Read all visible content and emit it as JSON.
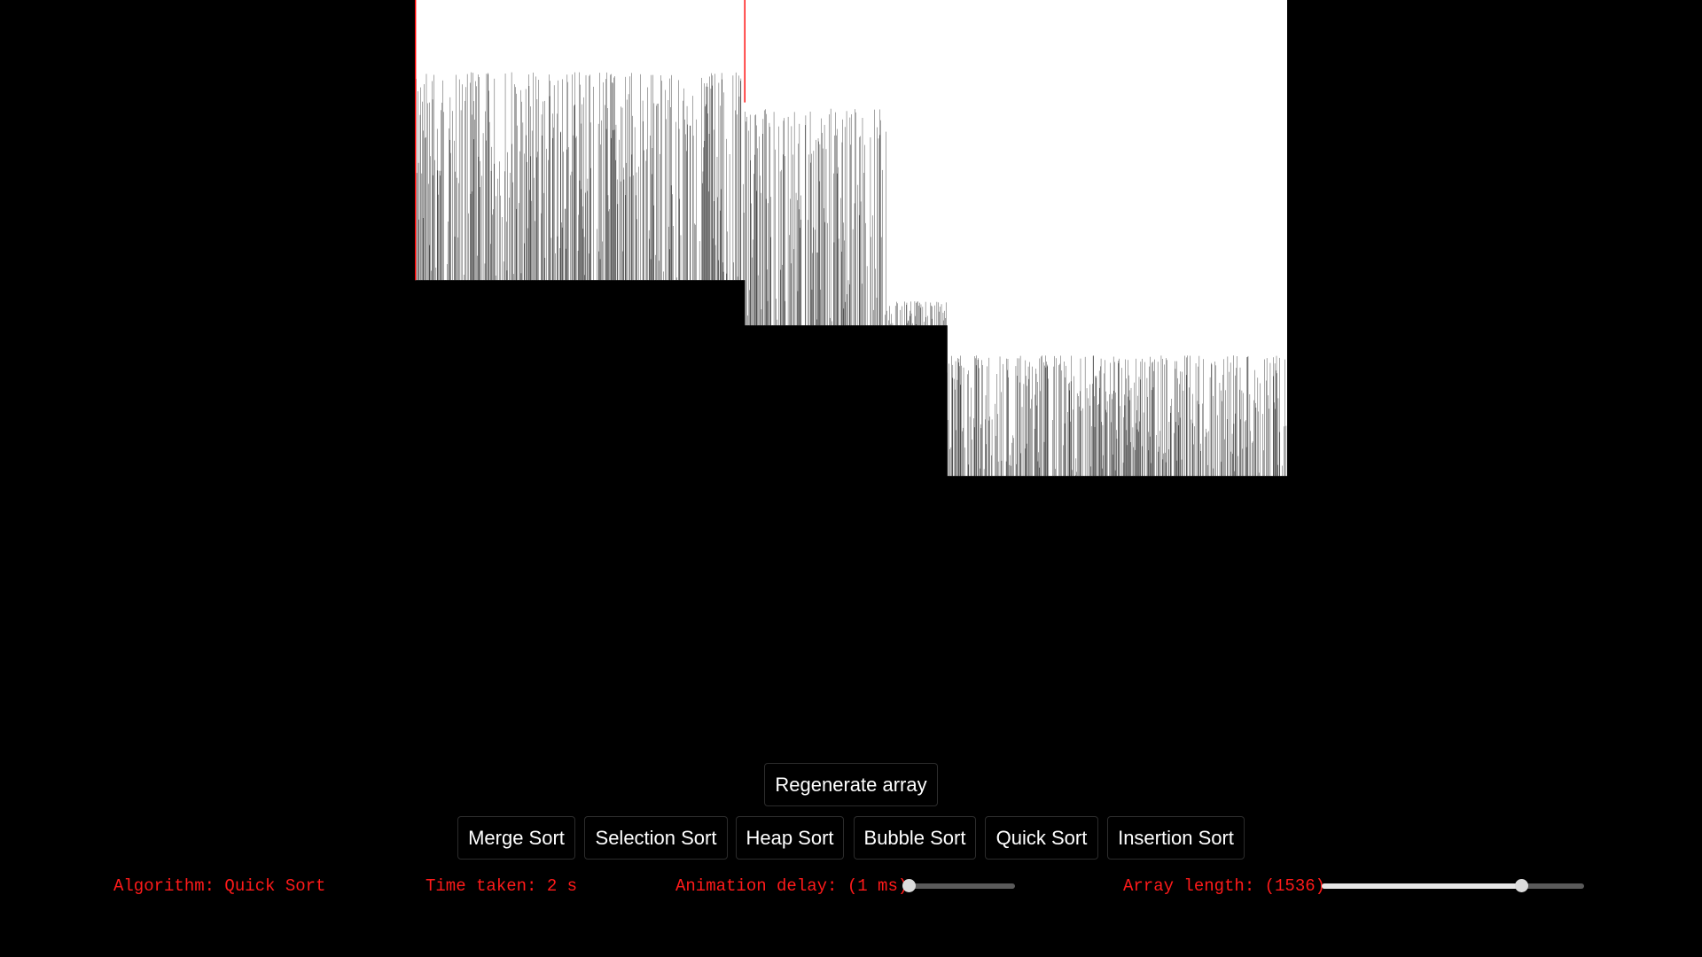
{
  "app": {
    "background": "#000000",
    "panel_background": "#ffffff",
    "bar_color": "#000000",
    "highlight_color": "#ff0000",
    "status_color": "#ff1a1a"
  },
  "controls": {
    "regenerate_label": "Regenerate array",
    "algorithms": [
      "Merge Sort",
      "Selection Sort",
      "Heap Sort",
      "Bubble Sort",
      "Quick Sort",
      "Insertion Sort"
    ]
  },
  "status": {
    "algorithm_text": "Algorithm: Quick Sort",
    "time_text": "Time taken: 2 s",
    "delay_text": "Animation delay: (1 ms)",
    "length_text": "Array length: (1536)"
  },
  "sliders": {
    "delay": {
      "value_fraction": 0.0
    },
    "length": {
      "value_fraction": 0.76
    }
  },
  "array_state": {
    "length": 1536,
    "highlighted_fractions": [
      0.0,
      0.378
    ],
    "segments": [
      {
        "from": 0.0,
        "to": 0.378,
        "floor": 0.535,
        "peak_min": 0.14,
        "peak_max": 0.88
      },
      {
        "from": 0.378,
        "to": 0.54,
        "floor": 0.46,
        "peak_min": 0.08,
        "peak_max": 0.82
      },
      {
        "from": 0.54,
        "to": 0.61,
        "floor": 0.46,
        "peak_min": 0.4,
        "peak_max": 0.5
      },
      {
        "from": 0.61,
        "to": 1.0,
        "floor": 0.21,
        "peak_min": 0.0,
        "peak_max": 0.41
      }
    ]
  }
}
